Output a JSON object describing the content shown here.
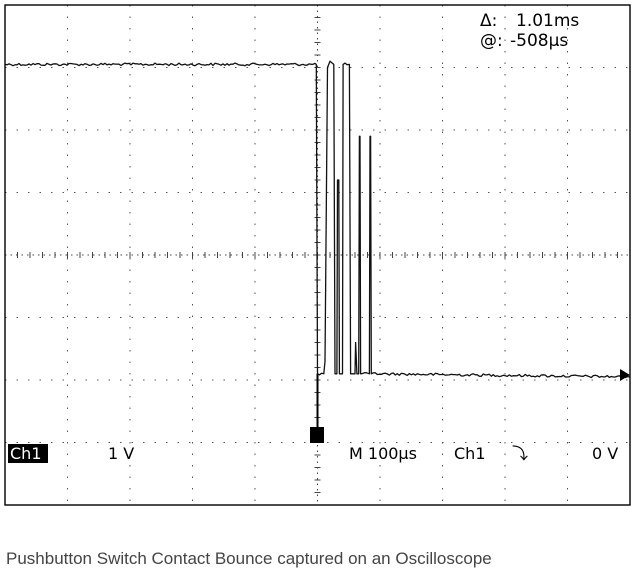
{
  "caption": "Pushbutton Switch Contact Bounce captured on an Oscilloscope",
  "scope": {
    "cursor_delta_label": "Δ:",
    "cursor_delta_value": "1.01ms",
    "cursor_at_label": "@:",
    "cursor_at_value": "-508µs",
    "channel_label": "Ch1",
    "volts_per_div": "1 V",
    "timebase": "M 100µs",
    "trigger_source": "Ch1",
    "trigger_slope_symbol": "⤵",
    "trigger_level": "0 V"
  },
  "chart_data": {
    "type": "line",
    "title": "",
    "xlabel": "",
    "ylabel": "",
    "x_unit": "µs",
    "y_unit": "div",
    "xlim": [
      -500,
      500
    ],
    "ylim": [
      -4,
      4
    ],
    "grid": true,
    "series": [
      {
        "values": [
          [
            -500,
            3.05
          ],
          [
            -2,
            3.05
          ],
          [
            0,
            -1.9
          ],
          [
            10,
            -1.9
          ],
          [
            12,
            -1.7
          ],
          [
            16,
            3.0
          ],
          [
            20,
            3.1
          ],
          [
            26,
            3.05
          ],
          [
            28,
            -1.9
          ],
          [
            31,
            -1.9
          ],
          [
            32,
            1.2
          ],
          [
            34,
            1.2
          ],
          [
            35,
            -1.9
          ],
          [
            40,
            -1.9
          ],
          [
            41,
            3.05
          ],
          [
            51,
            3.05
          ],
          [
            53,
            -1.9
          ],
          [
            60,
            -1.9
          ],
          [
            61,
            -1.4
          ],
          [
            62,
            -1.65
          ],
          [
            63,
            -1.9
          ],
          [
            66,
            -1.9
          ],
          [
            67,
            1.9
          ],
          [
            68,
            1.9
          ],
          [
            69,
            -1.9
          ],
          [
            83,
            -1.9
          ],
          [
            84,
            1.9
          ],
          [
            85,
            1.9
          ],
          [
            86,
            -1.9
          ],
          [
            500,
            -1.95
          ]
        ]
      }
    ]
  }
}
